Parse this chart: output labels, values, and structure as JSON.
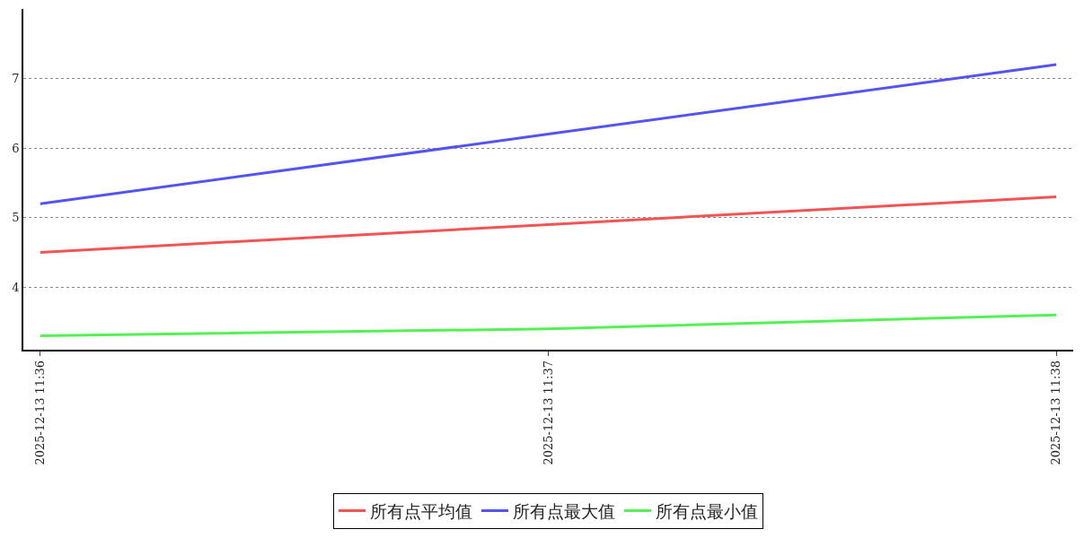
{
  "chart_data": {
    "type": "line",
    "x": [
      "2025-12-13T11:36",
      "2025-12-13T11:37",
      "2025-12-13T11:38"
    ],
    "series": [
      {
        "name": "所有点平均值",
        "color": "#f05454",
        "values": [
          4.5,
          4.9,
          5.3
        ]
      },
      {
        "name": "所有点最大值",
        "color": "#5454f0",
        "values": [
          5.2,
          6.2,
          7.2
        ]
      },
      {
        "name": "所有点最小值",
        "color": "#54f054",
        "values": [
          3.3,
          3.4,
          3.6
        ]
      }
    ],
    "xlim": [
      "2025-12-13T11:35:58",
      "2025-12-13T11:38:02"
    ],
    "xticks": [
      {
        "value": "2025-12-13T11:36",
        "label": "2025-12-13 11:36"
      },
      {
        "value": "2025-12-13T11:37",
        "label": "2025-12-13 11:37"
      },
      {
        "value": "2025-12-13T11:38",
        "label": "2025-12-13 11:38"
      }
    ],
    "ylim": [
      3.1,
      8
    ],
    "yticks": [
      4,
      5,
      6,
      7
    ],
    "grid": "y",
    "legend": "bottom",
    "marker": "none",
    "line_style": "solid"
  }
}
